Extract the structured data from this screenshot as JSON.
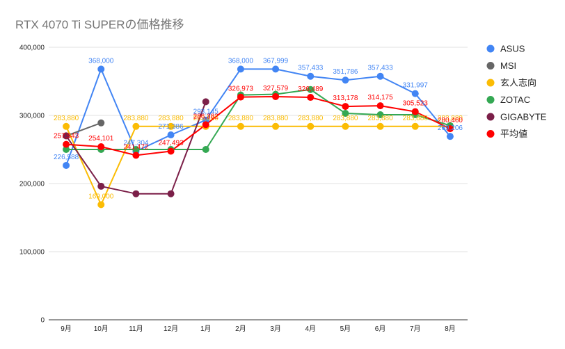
{
  "chart_data": {
    "type": "line",
    "title": "RTX 4070 Ti SUPERの価格推移",
    "xlabel": "",
    "ylabel": "",
    "categories": [
      "9月",
      "10月",
      "11月",
      "12月",
      "1月",
      "2月",
      "3月",
      "4月",
      "5月",
      "6月",
      "7月",
      "8月"
    ],
    "ylim": [
      0,
      400000
    ],
    "yticks": [
      0,
      100000,
      200000,
      300000,
      400000
    ],
    "ytick_labels": [
      "0",
      "100,000",
      "200,000",
      "300,000",
      "400,000"
    ],
    "grid": true,
    "legend_position": "right",
    "series": [
      {
        "name": "ASUS",
        "color": "#4285f4",
        "values": [
          226588,
          368000,
          247304,
          271386,
          293145,
          368000,
          367999,
          357433,
          351786,
          357433,
          331997,
          269206
        ],
        "labels": [
          "226,588",
          "368,000",
          "247,304",
          "271,386",
          "293,145",
          "368,000",
          "367,999",
          "357,433",
          "351,786",
          "357,433",
          "331,997",
          "269,206"
        ]
      },
      {
        "name": "MSI",
        "color": "#666666",
        "values": [
          270000,
          289000,
          null,
          null,
          null,
          null,
          null,
          null,
          null,
          null,
          null,
          null
        ],
        "labels": []
      },
      {
        "name": "玄人志向",
        "color": "#fbbc04",
        "values": [
          283880,
          169000,
          283880,
          283880,
          283880,
          283880,
          283880,
          283880,
          283880,
          283880,
          283880,
          283880
        ],
        "labels": [
          "283,880",
          "169,000",
          "283,880",
          "283,880",
          "283,880",
          "283,880",
          "283,880",
          "283,880",
          "283,880",
          "283,880",
          "283,880",
          "283,880"
        ]
      },
      {
        "name": "ZOTAC",
        "color": "#34a853",
        "values": [
          250000,
          250000,
          250000,
          250000,
          250000,
          330000,
          331000,
          338000,
          303000,
          301000,
          301000,
          285000
        ],
        "labels": []
      },
      {
        "name": "GIGABYTE",
        "color": "#7b1f48",
        "values": [
          270000,
          196000,
          185000,
          185000,
          320000,
          null,
          null,
          null,
          null,
          null,
          null,
          null
        ],
        "labels": []
      },
      {
        "name": "平均値",
        "color": "#ff0000",
        "values": [
          257543,
          254101,
          241472,
          247493,
          286382,
          326973,
          327579,
          326489,
          313178,
          314175,
          305523,
          280460
        ],
        "labels": [
          "257,543",
          "254,101",
          "241,472",
          "247,493",
          "286,382",
          "326,973",
          "327,579",
          "326,489",
          "313,178",
          "314,175",
          "305,523",
          "280,460"
        ]
      }
    ]
  }
}
